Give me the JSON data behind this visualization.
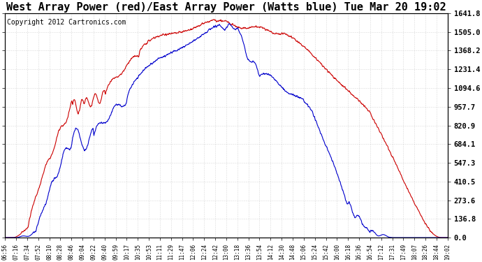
{
  "title": "West Array Power (red)/East Array Power (Watts blue) Tue Mar 20 19:02",
  "copyright": "Copyright 2012 Cartronics.com",
  "yticks": [
    0.0,
    136.8,
    273.6,
    410.5,
    547.3,
    684.1,
    820.9,
    957.7,
    1094.6,
    1231.4,
    1368.2,
    1505.0,
    1641.8
  ],
  "ymax": 1641.8,
  "ymin": 0.0,
  "xtick_labels": [
    "06:56",
    "07:16",
    "07:34",
    "07:52",
    "08:10",
    "08:28",
    "08:46",
    "09:04",
    "09:22",
    "09:40",
    "09:59",
    "10:17",
    "10:35",
    "10:53",
    "11:11",
    "11:29",
    "11:47",
    "12:06",
    "12:24",
    "12:42",
    "13:00",
    "13:18",
    "13:36",
    "13:54",
    "14:12",
    "14:30",
    "14:48",
    "15:06",
    "15:24",
    "15:42",
    "16:00",
    "16:18",
    "16:36",
    "16:54",
    "17:12",
    "17:31",
    "17:49",
    "18:07",
    "18:26",
    "18:44",
    "19:02"
  ],
  "bg_color": "#ffffff",
  "plot_bg_color": "#ffffff",
  "grid_color": "#bbbbbb",
  "red_color": "#cc0000",
  "blue_color": "#0000cc",
  "title_fontsize": 11,
  "copyright_fontsize": 7
}
